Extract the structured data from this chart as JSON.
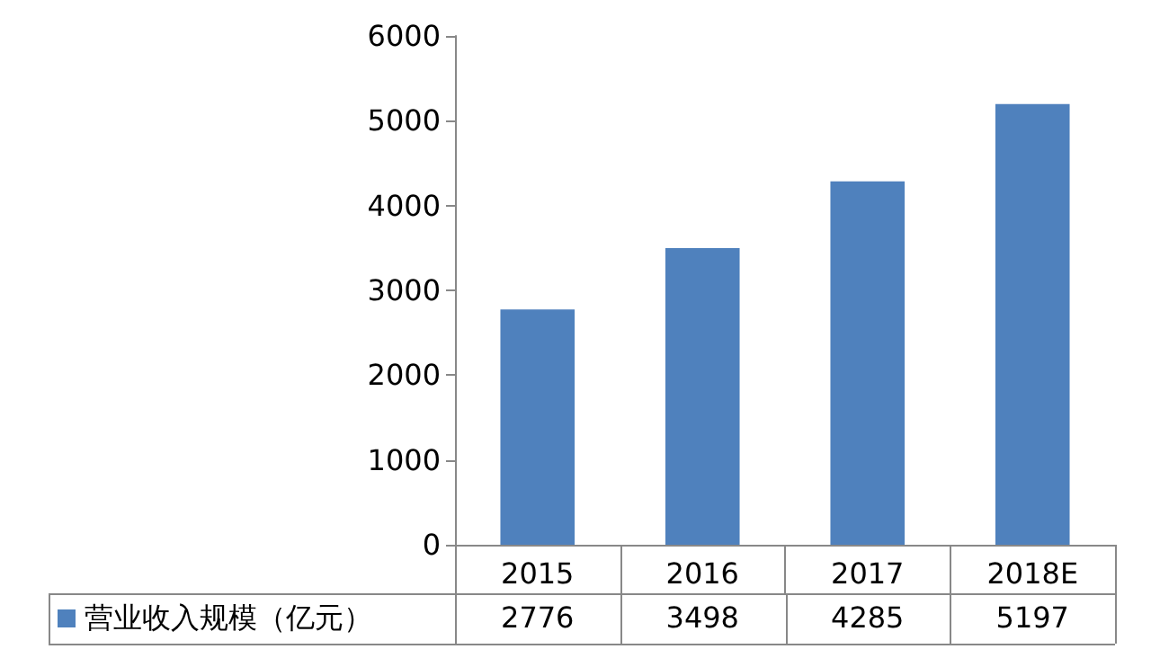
{
  "chart_data": {
    "type": "bar",
    "categories": [
      "2015",
      "2016",
      "2017",
      "2018E"
    ],
    "series": [
      {
        "name": "营业收入规模（亿元）",
        "color": "#4f81bd",
        "values": [
          2776,
          3498,
          4285,
          5197
        ]
      }
    ],
    "ylim": [
      0,
      6000
    ],
    "yticks": [
      0,
      1000,
      2000,
      3000,
      4000,
      5000,
      6000
    ],
    "grid": false,
    "legend": "bottom left",
    "data_labels": true
  }
}
